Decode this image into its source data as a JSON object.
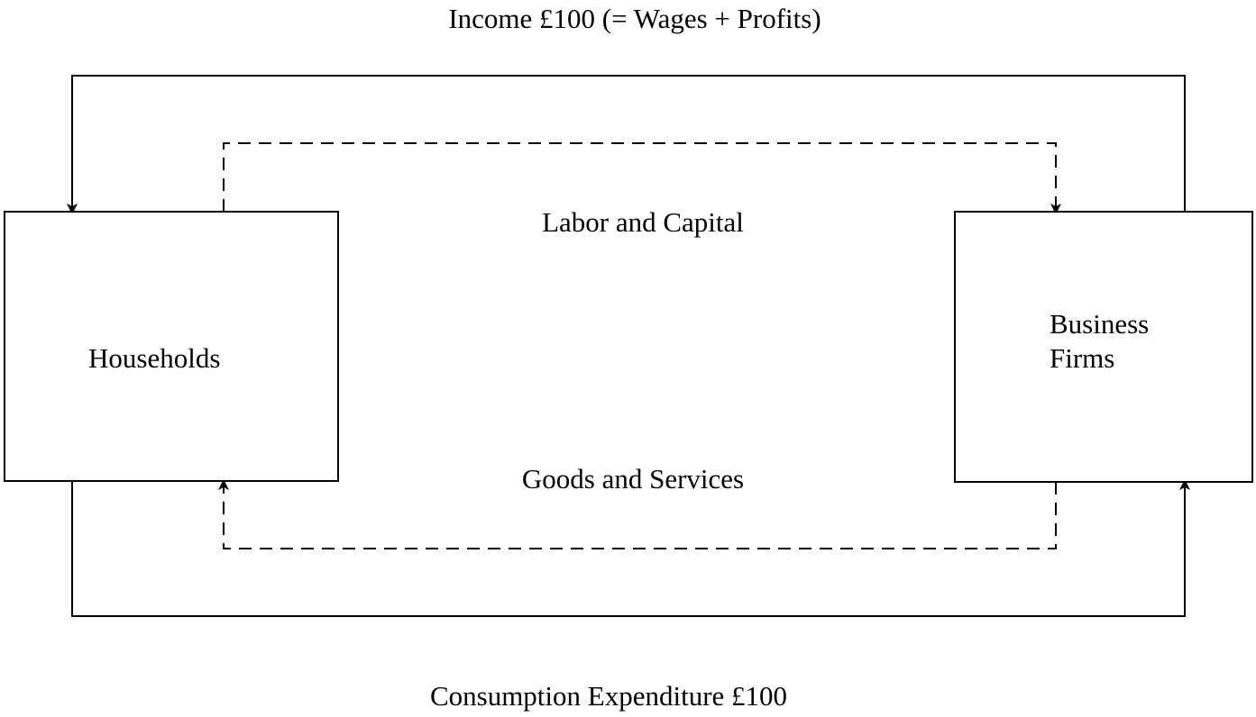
{
  "labels": {
    "income": "Income £100 (= Wages + Profits)",
    "labor_capital": "Labor and Capital",
    "goods_services": "Goods and Services",
    "consumption": "Consumption Expenditure £100"
  },
  "nodes": {
    "households": "Households",
    "business_line1": "Business",
    "business_line2": "Firms"
  }
}
